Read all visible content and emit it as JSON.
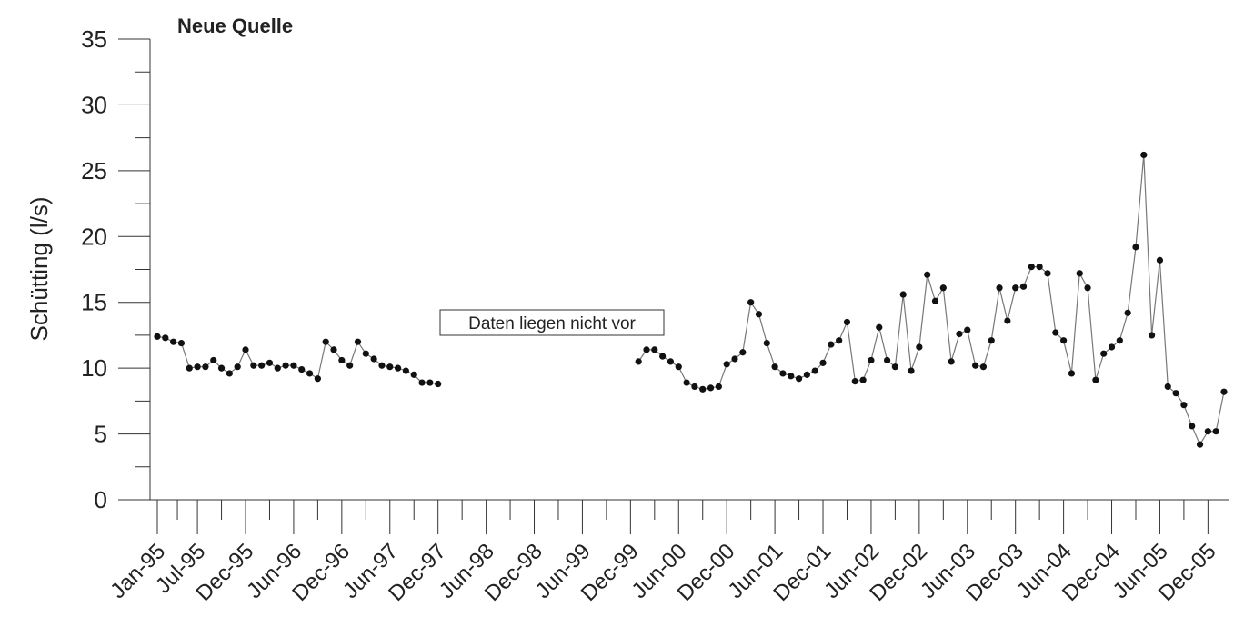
{
  "chart_data": {
    "type": "line",
    "title": "Neue Quelle",
    "y_label": "Schütting (l/s)",
    "annotation": "Daten liegen nicht vor",
    "categories": [
      "Jan-95",
      null,
      null,
      null,
      null,
      "Jul-95",
      null,
      null,
      null,
      null,
      null,
      "Dec-95",
      null,
      null,
      null,
      null,
      null,
      "Jun-96",
      null,
      null,
      null,
      null,
      null,
      "Dec-96",
      null,
      null,
      null,
      null,
      null,
      "Jun-97",
      null,
      null,
      null,
      null,
      null,
      "Dec-97",
      null,
      null,
      null,
      null,
      null,
      "Jun-98",
      null,
      null,
      null,
      null,
      null,
      "Dec-98",
      null,
      null,
      null,
      null,
      null,
      "Jun-99",
      null,
      null,
      null,
      null,
      null,
      "Dec-99",
      null,
      null,
      null,
      null,
      null,
      "Jun-00",
      null,
      null,
      null,
      null,
      null,
      "Dec-00",
      null,
      null,
      null,
      null,
      null,
      "Jun-01",
      null,
      null,
      null,
      null,
      null,
      "Dec-01",
      null,
      null,
      null,
      null,
      null,
      "Jun-02",
      null,
      null,
      null,
      null,
      null,
      "Dec-02",
      null,
      null,
      null,
      null,
      null,
      "Jun-03",
      null,
      null,
      null,
      null,
      null,
      "Dec-03",
      null,
      null,
      null,
      null,
      null,
      "Jun-04",
      null,
      null,
      null,
      null,
      null,
      "Dec-04",
      null,
      null,
      null,
      null,
      null,
      "Jun-05",
      null,
      null,
      null,
      null,
      null,
      "Dec-05",
      null,
      null
    ],
    "series": [
      {
        "name": "Neue Quelle",
        "color": "#777777",
        "marker_color": "#111111",
        "values": [
          12.4,
          12.3,
          12.0,
          11.9,
          10.0,
          10.1,
          10.1,
          10.6,
          10.0,
          9.6,
          10.1,
          11.4,
          10.2,
          10.2,
          10.4,
          10.0,
          10.2,
          10.2,
          9.9,
          9.6,
          9.2,
          12.0,
          11.4,
          10.6,
          10.2,
          12.0,
          11.1,
          10.7,
          10.2,
          10.1,
          10.0,
          9.8,
          9.5,
          8.9,
          8.9,
          8.8,
          null,
          null,
          null,
          null,
          null,
          null,
          null,
          null,
          null,
          null,
          null,
          null,
          null,
          null,
          null,
          null,
          null,
          null,
          null,
          null,
          null,
          null,
          null,
          null,
          10.5,
          11.4,
          11.4,
          10.9,
          10.5,
          10.1,
          8.9,
          8.6,
          8.4,
          8.5,
          8.6,
          10.3,
          10.7,
          11.2,
          15.0,
          14.1,
          11.9,
          10.1,
          9.6,
          9.4,
          9.2,
          9.5,
          9.8,
          10.4,
          11.8,
          12.1,
          13.5,
          9.0,
          9.1,
          10.6,
          13.1,
          10.6,
          10.1,
          15.6,
          9.8,
          11.6,
          17.1,
          15.1,
          16.1,
          10.5,
          12.6,
          12.9,
          10.2,
          10.1,
          12.1,
          16.1,
          13.6,
          16.1,
          16.2,
          17.7,
          17.7,
          17.2,
          12.7,
          12.1,
          9.6,
          17.2,
          16.1,
          9.1,
          11.1,
          11.6,
          12.1,
          14.2,
          19.2,
          26.2,
          12.5,
          18.2,
          8.6,
          8.1,
          7.2,
          5.6,
          4.2,
          5.2,
          5.2,
          8.2
        ]
      }
    ],
    "ylim": [
      0,
      35
    ],
    "yticks": [
      0,
      5,
      10,
      15,
      20,
      25,
      30,
      35
    ],
    "grid": false
  }
}
